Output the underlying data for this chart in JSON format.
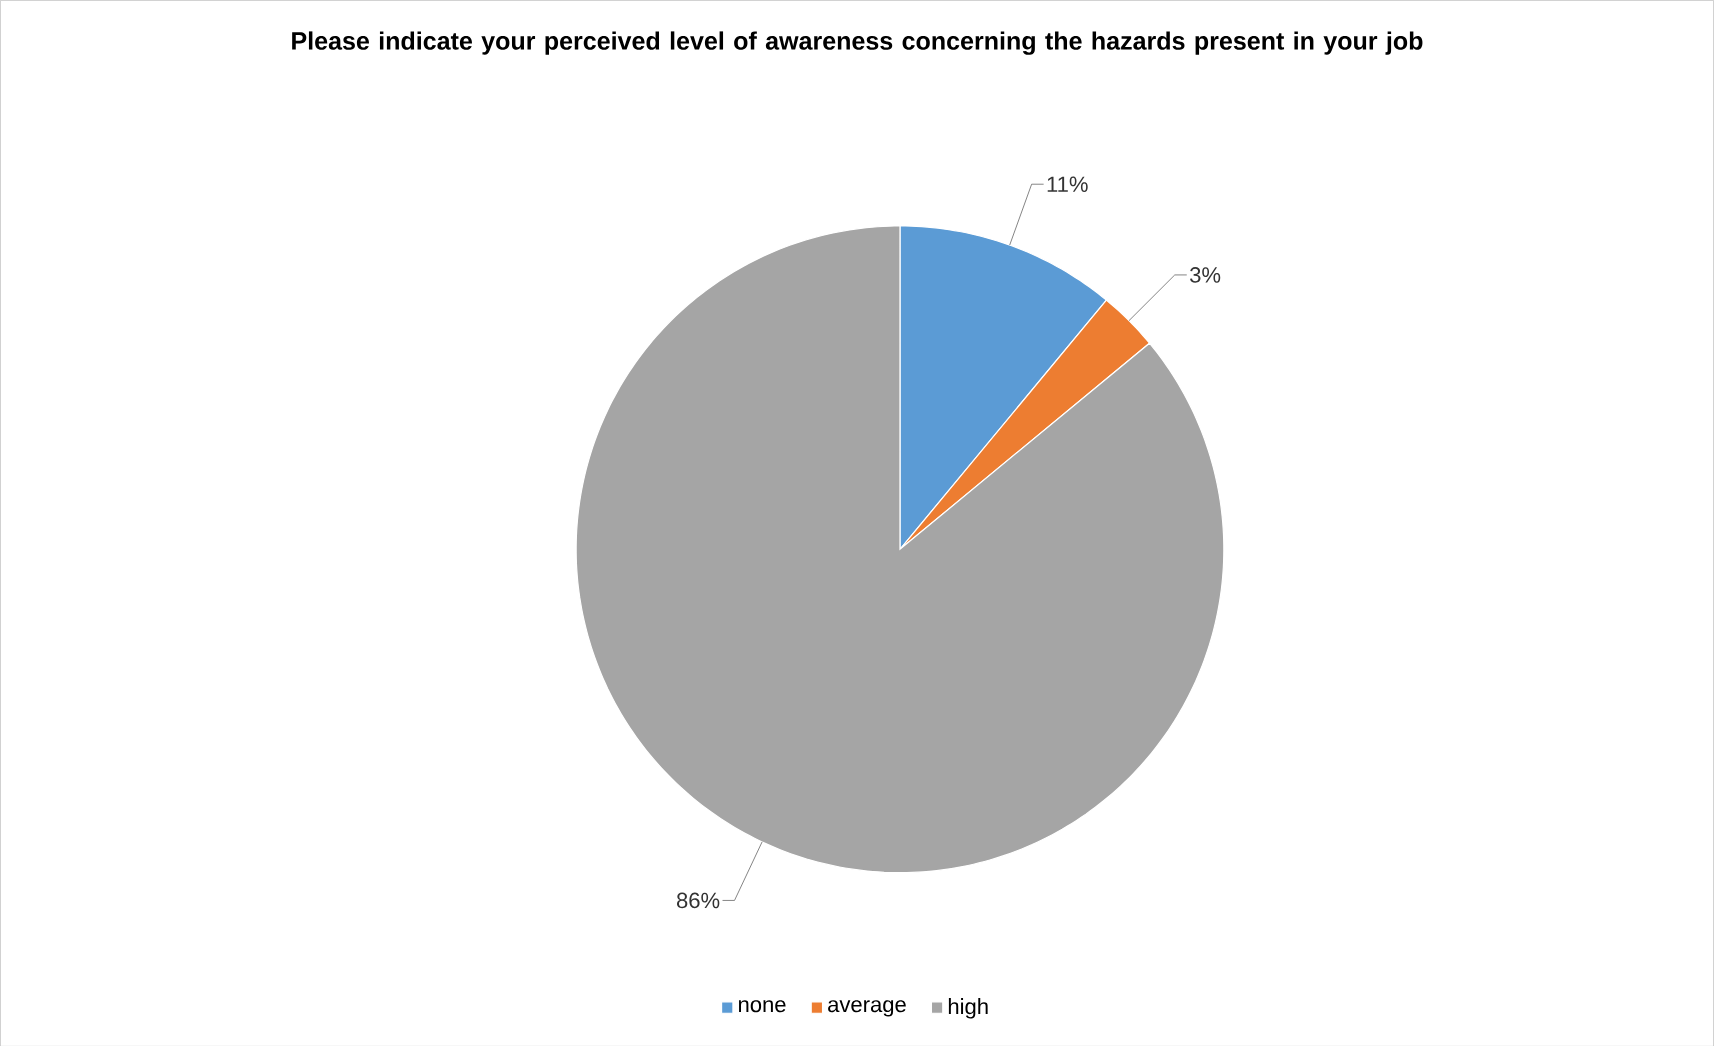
{
  "chart_data": {
    "type": "pie",
    "title": "Please indicate your perceived level of awareness concerning the hazards present in your job",
    "categories": [
      "none",
      "average",
      "high"
    ],
    "values": [
      11,
      3,
      86
    ],
    "value_labels": [
      "11%",
      "3%",
      "86%"
    ],
    "colors": [
      "#5b9bd5",
      "#ed7d31",
      "#a5a5a5"
    ],
    "legend": "bottom"
  }
}
